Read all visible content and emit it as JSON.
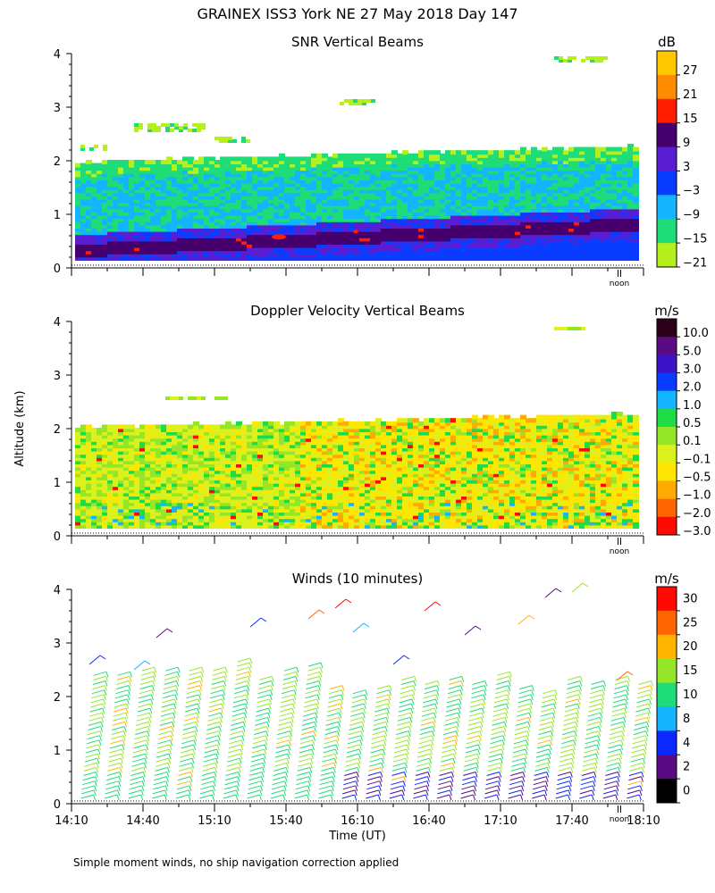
{
  "header": {
    "title": "GRAINEX ISS3 York NE  27 May 2018 Day 147"
  },
  "y_axis_label": "Altitude (km)",
  "x_axis_label": "Time (UT)",
  "noon_label": "noon",
  "footer_note": "Simple moment winds, no ship navigation correction applied",
  "chart_data": [
    {
      "type": "heatmap",
      "title": "SNR Vertical Beams",
      "xlabel": "",
      "ylabel": "Altitude (km)",
      "x_range_ut": [
        "14:10",
        "18:10"
      ],
      "ylim": [
        0,
        4
      ],
      "y_ticks": [
        "0",
        "1",
        "2",
        "3",
        "4"
      ],
      "colorbar_unit": "dB",
      "colorbar_labels": [
        "27",
        "21",
        "15",
        "9",
        "3",
        "−3",
        "−9",
        "−15",
        "−21"
      ],
      "colorbar_colors": [
        "#ffc800",
        "#ff8c00",
        "#ff1e00",
        "#46006e",
        "#5a1ed2",
        "#0a3cff",
        "#14b4ff",
        "#1edc78",
        "#b4f01e"
      ],
      "layers": [
        {
          "name": "boundary layer echo",
          "alt_bottom_start": 0.15,
          "alt_top_start": 1.95,
          "alt_top_end": 2.25
        },
        {
          "name": "strongest returns",
          "alt_start": 0.3,
          "alt_end": 0.8,
          "snr_db": 9
        },
        {
          "name": "clear-air patches aloft",
          "alt_range": [
            2.3,
            3.9
          ]
        }
      ]
    },
    {
      "type": "heatmap",
      "title": "Doppler Velocity Vertical Beams",
      "xlabel": "",
      "ylabel": "Altitude (km)",
      "x_range_ut": [
        "14:10",
        "18:10"
      ],
      "ylim": [
        0,
        4
      ],
      "y_ticks": [
        "0",
        "1",
        "2",
        "3",
        "4"
      ],
      "colorbar_unit": "m/s",
      "colorbar_labels": [
        "10.0",
        "5.0",
        "3.0",
        "2.0",
        "1.0",
        "0.5",
        "0.1",
        "−0.1",
        "−0.5",
        "−1.0",
        "−2.0",
        "−3.0"
      ],
      "colorbar_colors": [
        "#2a0018",
        "#5a0a82",
        "#3c14c8",
        "#0a3cff",
        "#14b4ff",
        "#1edc46",
        "#96e628",
        "#dcf01e",
        "#ffe600",
        "#ffaa00",
        "#ff6400",
        "#ff0a00"
      ],
      "layers": [
        {
          "name": "boundary layer velocity",
          "alt_bottom": 0.15,
          "alt_top_start": 2.0,
          "alt_top_end": 2.25,
          "typical_ms": -0.3
        }
      ]
    },
    {
      "type": "scatter",
      "title": "Winds (10 minutes)",
      "xlabel": "Time (UT)",
      "ylabel": "Altitude (km)",
      "ylim": [
        0,
        4
      ],
      "y_ticks": [
        "0",
        "1",
        "2",
        "3",
        "4"
      ],
      "x_ticks": [
        "14:10",
        "14:40",
        "15:10",
        "15:40",
        "16:10",
        "16:40",
        "17:10",
        "17:40",
        "18:10"
      ],
      "colorbar_unit": "m/s",
      "colorbar_labels": [
        "30",
        "25",
        "20",
        "15",
        "10",
        "8",
        "4",
        "2",
        "0"
      ],
      "colorbar_colors": [
        "#ff0a00",
        "#ff6400",
        "#ffb400",
        "#96e628",
        "#1edc78",
        "#14b4ff",
        "#0a28ff",
        "#5a0a82",
        "#000000"
      ],
      "profile_interval_min": 10,
      "profile_count": 24,
      "notes": "Wind barbs; south-southwesterly winds 8-20 m/s below 2.2 km"
    }
  ]
}
